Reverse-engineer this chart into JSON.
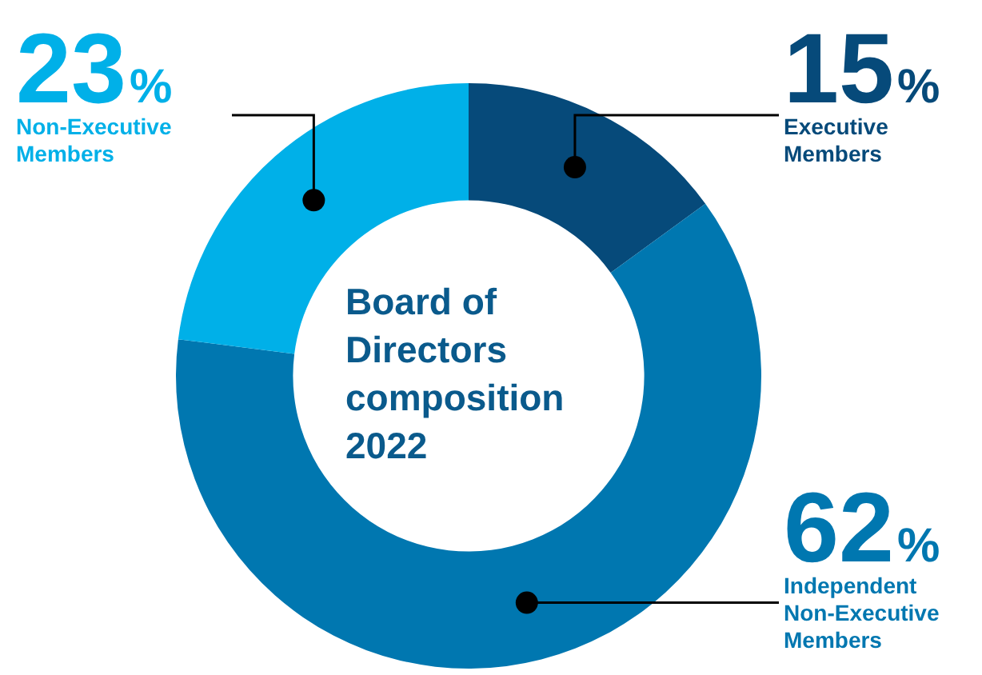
{
  "chart_data": {
    "type": "donut",
    "title": "Board of Directors composition 2022",
    "categories": [
      "Executive Members",
      "Independent Non-Executive Members",
      "Non-Executive Members"
    ],
    "values": [
      15,
      62,
      23
    ],
    "value_labels": [
      "15%",
      "62%",
      "23%"
    ],
    "colors": [
      "#064a7a",
      "#0077b0",
      "#00b0e8"
    ],
    "legend": false
  }
}
